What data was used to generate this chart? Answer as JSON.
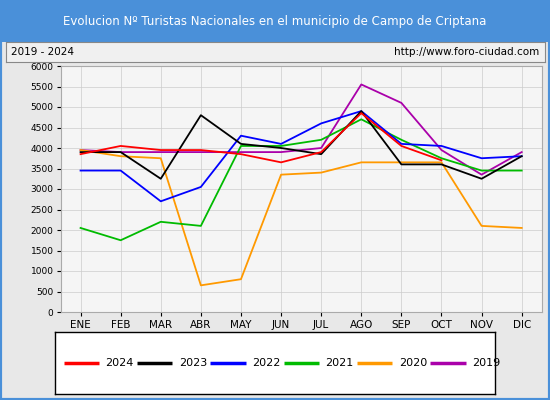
{
  "title": "Evolucion Nº Turistas Nacionales en el municipio de Campo de Criptana",
  "subtitle_left": "2019 - 2024",
  "subtitle_right": "http://www.foro-ciudad.com",
  "title_bg_color": "#4a90d9",
  "title_text_color": "#ffffff",
  "months": [
    "ENE",
    "FEB",
    "MAR",
    "ABR",
    "MAY",
    "JUN",
    "JUL",
    "AGO",
    "SEP",
    "OCT",
    "NOV",
    "DIC"
  ],
  "ylim": [
    0,
    6000
  ],
  "yticks": [
    0,
    500,
    1000,
    1500,
    2000,
    2500,
    3000,
    3500,
    4000,
    4500,
    5000,
    5500,
    6000
  ],
  "series": {
    "2024": {
      "color": "#ff0000",
      "data": [
        3850,
        4050,
        3950,
        3950,
        3850,
        3650,
        3900,
        4850,
        4050,
        3700,
        null,
        null
      ]
    },
    "2023": {
      "color": "#000000",
      "data": [
        3900,
        3900,
        3250,
        4800,
        4100,
        4000,
        3850,
        4900,
        3600,
        3600,
        3250,
        3800
      ]
    },
    "2022": {
      "color": "#0000ff",
      "data": [
        3450,
        3450,
        2700,
        3050,
        4300,
        4100,
        4600,
        4900,
        4100,
        4050,
        3750,
        3800
      ]
    },
    "2021": {
      "color": "#00bb00",
      "data": [
        2050,
        1750,
        2200,
        2100,
        4050,
        4050,
        4200,
        4700,
        4200,
        3750,
        3450,
        3450
      ]
    },
    "2020": {
      "color": "#ff9900",
      "data": [
        3950,
        3800,
        3750,
        650,
        800,
        3350,
        3400,
        3650,
        3650,
        3650,
        2100,
        2050
      ]
    },
    "2019": {
      "color": "#aa00aa",
      "data": [
        3950,
        3900,
        3900,
        3900,
        3900,
        3900,
        4000,
        5550,
        5100,
        3950,
        3350,
        3900
      ]
    }
  },
  "legend_order": [
    "2024",
    "2023",
    "2022",
    "2021",
    "2020",
    "2019"
  ],
  "bg_color": "#e8e8e8",
  "plot_bg_color": "#f0f0f0",
  "outer_border_color": "#4a90d9"
}
